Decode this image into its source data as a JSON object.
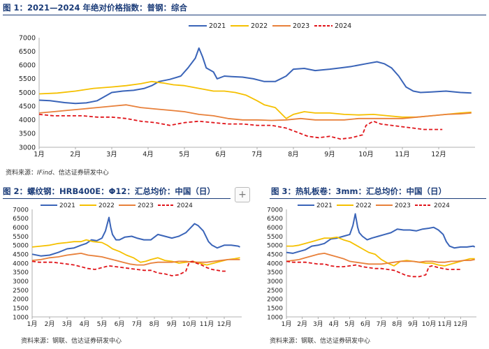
{
  "figures": [
    {
      "title": "图 1：2021—2024 年绝对价格指数：普钢：综合",
      "source": {
        "prefix": "资料来源：",
        "italic": "IFind",
        "suffix": "、信达证券研发中心"
      }
    },
    {
      "title": "图 2：螺纹钢：HRB400E：Φ12：汇总均价：中国（日）",
      "source": {
        "prefix": "资料来源：钢联、信达证券研发中心",
        "italic": "",
        "suffix": ""
      }
    },
    {
      "title": "图 3：热轧板卷：3mm：汇总均价：中国（日）",
      "source": {
        "prefix": "资料来源：钢联、信达证券研发中心",
        "italic": "",
        "suffix": ""
      }
    }
  ],
  "add_button_label": "+",
  "colors": {
    "2021": "#3a64b8",
    "2022": "#f5c000",
    "2023": "#e8803a",
    "2024": "#e0141a"
  },
  "chart_data": [
    {
      "type": "line",
      "title": "2021—2024 年绝对价格指数：普钢：综合",
      "categories": [
        "1月",
        "2月",
        "3月",
        "4月",
        "5月",
        "6月",
        "7月",
        "8月",
        "9月",
        "10月",
        "11月",
        "12月"
      ],
      "x_range": [
        1,
        13
      ],
      "ylim": [
        3000,
        7000
      ],
      "yticks": [
        3000,
        3500,
        4000,
        4500,
        5000,
        5500,
        6000,
        6500,
        7000
      ],
      "series": [
        {
          "name": "2021",
          "x": [
            1,
            1.3,
            1.7,
            2,
            2.3,
            2.6,
            3,
            3.3,
            3.6,
            3.9,
            4.1,
            4.3,
            4.6,
            4.9,
            5.1,
            5.3,
            5.4,
            5.5,
            5.6,
            5.8,
            5.9,
            6.1,
            6.3,
            6.6,
            6.9,
            7.2,
            7.5,
            7.8,
            8,
            8.3,
            8.6,
            9,
            9.3,
            9.6,
            10,
            10.3,
            10.5,
            10.7,
            10.9,
            11.1,
            11.3,
            11.5,
            11.8,
            12.2,
            12.6,
            12.9
          ],
          "values": [
            4720,
            4700,
            4630,
            4600,
            4620,
            4700,
            5000,
            5050,
            5080,
            5150,
            5250,
            5400,
            5480,
            5600,
            5900,
            6250,
            6620,
            6300,
            5900,
            5750,
            5500,
            5600,
            5580,
            5560,
            5500,
            5400,
            5400,
            5600,
            5850,
            5880,
            5800,
            5850,
            5900,
            5950,
            6050,
            6120,
            6050,
            5900,
            5600,
            5200,
            5050,
            5000,
            5020,
            5050,
            5000,
            4980
          ]
        },
        {
          "name": "2022",
          "x": [
            1,
            1.5,
            2,
            2.5,
            3,
            3.4,
            3.8,
            4.1,
            4.4,
            4.7,
            5,
            5.4,
            5.8,
            6.1,
            6.4,
            6.7,
            7,
            7.2,
            7.5,
            7.8,
            8,
            8.3,
            8.6,
            9,
            9.4,
            9.8,
            10.2,
            10.6,
            11,
            11.4,
            11.8,
            12.2,
            12.6,
            12.9
          ],
          "values": [
            4950,
            4980,
            5050,
            5150,
            5200,
            5250,
            5320,
            5400,
            5350,
            5280,
            5250,
            5150,
            5050,
            5050,
            5000,
            4900,
            4700,
            4550,
            4450,
            4050,
            4200,
            4300,
            4250,
            4250,
            4200,
            4180,
            4200,
            4150,
            4100,
            4100,
            4150,
            4200,
            4250,
            4280
          ]
        },
        {
          "name": "2023",
          "x": [
            1,
            1.4,
            1.8,
            2.2,
            2.6,
            3,
            3.4,
            3.8,
            4.2,
            4.6,
            5,
            5.4,
            5.8,
            6.2,
            6.6,
            7,
            7.4,
            7.8,
            8.2,
            8.6,
            9,
            9.4,
            9.8,
            10.2,
            10.6,
            11,
            11.4,
            11.8,
            12.2,
            12.6,
            12.9
          ],
          "values": [
            4250,
            4300,
            4350,
            4400,
            4450,
            4500,
            4550,
            4450,
            4400,
            4350,
            4300,
            4200,
            4150,
            4050,
            4000,
            4000,
            3980,
            4000,
            4050,
            4000,
            4000,
            4000,
            4050,
            4050,
            4050,
            4050,
            4100,
            4150,
            4200,
            4220,
            4250
          ]
        },
        {
          "name": "2024",
          "x": [
            1,
            1.4,
            1.8,
            2.2,
            2.6,
            3,
            3.4,
            3.8,
            4.2,
            4.6,
            5,
            5.4,
            5.8,
            6.2,
            6.6,
            7,
            7.4,
            7.8,
            8.1,
            8.4,
            8.7,
            9,
            9.3,
            9.6,
            9.9,
            10,
            10.2,
            10.4,
            10.7,
            11,
            11.3,
            11.6,
            11.9,
            12.1
          ],
          "values": [
            4200,
            4150,
            4150,
            4150,
            4100,
            4100,
            4050,
            3950,
            3900,
            3800,
            3900,
            3950,
            3900,
            3850,
            3850,
            3800,
            3800,
            3700,
            3550,
            3400,
            3350,
            3400,
            3300,
            3350,
            3450,
            3800,
            3950,
            3850,
            3800,
            3750,
            3700,
            3650,
            3650,
            3650
          ]
        }
      ]
    },
    {
      "type": "line",
      "title": "螺纹钢：HRB400E：Φ12：汇总均价：中国（日）",
      "categories": [
        "1月",
        "2月",
        "3月",
        "4月",
        "5月",
        "6月",
        "7月",
        "8月",
        "9月",
        "10月",
        "11月",
        "12月"
      ],
      "x_range": [
        1,
        13
      ],
      "ylim": [
        1000,
        7000
      ],
      "yticks": [
        1000,
        1500,
        2000,
        2500,
        3000,
        3500,
        4000,
        4500,
        5000,
        5500,
        6000,
        6500,
        7000
      ],
      "series": [
        {
          "name": "2021",
          "x": [
            1,
            1.5,
            2,
            2.5,
            3,
            3.4,
            3.8,
            4.1,
            4.4,
            4.7,
            5,
            5.2,
            5.4,
            5.5,
            5.6,
            5.8,
            6,
            6.3,
            6.7,
            7,
            7.4,
            7.8,
            8.2,
            8.6,
            9,
            9.4,
            9.8,
            10.1,
            10.3,
            10.5,
            10.8,
            11.1,
            11.3,
            11.6,
            12,
            12.4,
            12.8,
            12.9
          ],
          "values": [
            4500,
            4400,
            4450,
            4600,
            4800,
            4850,
            5000,
            5100,
            5300,
            5250,
            5400,
            5800,
            6550,
            6000,
            5600,
            5300,
            5300,
            5450,
            5500,
            5400,
            5300,
            5300,
            5600,
            5500,
            5400,
            5500,
            5700,
            6000,
            6200,
            6100,
            5800,
            5200,
            5000,
            4850,
            5000,
            5000,
            4950,
            4900
          ]
        },
        {
          "name": "2022",
          "x": [
            1,
            1.5,
            2,
            2.5,
            3,
            3.4,
            3.8,
            4.1,
            4.5,
            5,
            5.3,
            5.6,
            6,
            6.4,
            6.8,
            7.2,
            7.5,
            7.8,
            8.2,
            8.6,
            9,
            9.4,
            9.8,
            10.2,
            10.6,
            11,
            11.4,
            11.8,
            12.2,
            12.6,
            12.9
          ],
          "values": [
            4900,
            4950,
            5000,
            5100,
            5150,
            5200,
            5200,
            5300,
            5200,
            5150,
            5000,
            4800,
            4650,
            4450,
            4300,
            4050,
            4100,
            4200,
            4300,
            4150,
            4100,
            4000,
            4050,
            4100,
            4000,
            3900,
            4000,
            4100,
            4200,
            4250,
            4300
          ]
        },
        {
          "name": "2023",
          "x": [
            1,
            1.5,
            2,
            2.5,
            3,
            3.4,
            3.8,
            4.2,
            4.6,
            5,
            5.4,
            5.8,
            6.2,
            6.6,
            7,
            7.4,
            7.8,
            8.2,
            8.6,
            9,
            9.4,
            9.8,
            10.2,
            10.6,
            11,
            11.4,
            11.8,
            12.2,
            12.6,
            12.9
          ],
          "values": [
            4150,
            4200,
            4300,
            4350,
            4450,
            4500,
            4550,
            4450,
            4400,
            4350,
            4250,
            4150,
            4050,
            3950,
            3900,
            3900,
            4000,
            4050,
            4050,
            4050,
            4100,
            4100,
            4050,
            4050,
            4050,
            4100,
            4150,
            4200,
            4200,
            4200
          ]
        },
        {
          "name": "2024",
          "x": [
            1,
            1.4,
            1.8,
            2.2,
            2.6,
            3,
            3.4,
            3.8,
            4.2,
            4.6,
            5,
            5.4,
            5.8,
            6.2,
            6.6,
            7,
            7.4,
            7.8,
            8.2,
            8.6,
            9,
            9.4,
            9.8,
            10,
            10.2,
            10.4,
            10.7,
            11,
            11.3,
            11.6,
            11.9,
            12.1
          ],
          "values": [
            4100,
            4050,
            4050,
            4050,
            4000,
            3950,
            3900,
            3800,
            3700,
            3650,
            3750,
            3850,
            3800,
            3750,
            3700,
            3650,
            3600,
            3600,
            3450,
            3400,
            3300,
            3350,
            3550,
            4050,
            4100,
            4000,
            3900,
            3750,
            3650,
            3600,
            3550,
            3550
          ]
        }
      ]
    },
    {
      "type": "line",
      "title": "热轧板卷：3mm：汇总均价：中国（日）",
      "categories": [
        "1月",
        "2月",
        "3月",
        "4月",
        "5月",
        "6月",
        "7月",
        "8月",
        "9月",
        "10月",
        "11月",
        "12月"
      ],
      "x_range": [
        1,
        13
      ],
      "ylim": [
        1000,
        7000
      ],
      "yticks": [
        1000,
        1500,
        2000,
        2500,
        3000,
        3500,
        4000,
        4500,
        5000,
        5500,
        6000,
        6500,
        7000
      ],
      "series": [
        {
          "name": "2021",
          "x": [
            1,
            1.4,
            1.8,
            2.2,
            2.6,
            3,
            3.4,
            3.8,
            4.2,
            4.6,
            5,
            5.2,
            5.35,
            5.5,
            5.6,
            5.8,
            6.1,
            6.4,
            6.8,
            7.2,
            7.6,
            8,
            8.4,
            8.8,
            9.2,
            9.6,
            10,
            10.3,
            10.6,
            10.9,
            11.1,
            11.3,
            11.6,
            12,
            12.4,
            12.8,
            12.9
          ],
          "values": [
            4600,
            4550,
            4650,
            4750,
            4950,
            5000,
            5100,
            5350,
            5400,
            5500,
            5600,
            6100,
            6750,
            6000,
            5700,
            5500,
            5300,
            5400,
            5500,
            5600,
            5700,
            5900,
            5850,
            5850,
            5800,
            5900,
            5950,
            6000,
            5850,
            5600,
            5200,
            4950,
            4850,
            4900,
            4900,
            4950,
            4900
          ]
        },
        {
          "name": "2022",
          "x": [
            1,
            1.4,
            1.8,
            2.2,
            2.6,
            3,
            3.4,
            3.8,
            4.2,
            4.6,
            5,
            5.4,
            5.8,
            6.2,
            6.6,
            7,
            7.4,
            7.8,
            8.2,
            8.6,
            9,
            9.4,
            9.8,
            10.2,
            10.6,
            11,
            11.4,
            11.8,
            12.2,
            12.6,
            12.9
          ],
          "values": [
            4950,
            4950,
            5000,
            5100,
            5200,
            5300,
            5400,
            5400,
            5450,
            5300,
            5200,
            5000,
            4800,
            4600,
            4500,
            4200,
            4000,
            3850,
            4100,
            4150,
            4100,
            4050,
            4000,
            4000,
            3900,
            3850,
            3950,
            4050,
            4150,
            4250,
            4250
          ]
        },
        {
          "name": "2023",
          "x": [
            1,
            1.4,
            1.8,
            2.2,
            2.6,
            3,
            3.4,
            3.8,
            4.2,
            4.6,
            5,
            5.4,
            5.8,
            6.2,
            6.6,
            7,
            7.4,
            7.8,
            8.2,
            8.6,
            9,
            9.4,
            9.8,
            10.2,
            10.6,
            11,
            11.4,
            11.8,
            12.2,
            12.6,
            12.9
          ],
          "values": [
            4100,
            4150,
            4200,
            4300,
            4400,
            4500,
            4550,
            4450,
            4350,
            4250,
            4100,
            4050,
            4000,
            3950,
            3950,
            3950,
            4000,
            4050,
            4100,
            4100,
            4100,
            4050,
            4100,
            4100,
            4050,
            4050,
            4100,
            4100,
            4150,
            4150,
            4200
          ]
        },
        {
          "name": "2024",
          "x": [
            1,
            1.4,
            1.8,
            2.2,
            2.6,
            3,
            3.4,
            3.8,
            4.2,
            4.6,
            5,
            5.4,
            5.8,
            6.2,
            6.6,
            7,
            7.4,
            7.8,
            8.2,
            8.6,
            9,
            9.4,
            9.8,
            10,
            10.2,
            10.4,
            10.6,
            10.9,
            11.2,
            11.5,
            11.8,
            12.1
          ],
          "values": [
            4100,
            4050,
            4050,
            4050,
            4000,
            3950,
            3950,
            3850,
            3800,
            3800,
            3850,
            3900,
            3800,
            3750,
            3700,
            3700,
            3650,
            3600,
            3450,
            3300,
            3250,
            3250,
            3350,
            3800,
            3850,
            3800,
            3750,
            3700,
            3650,
            3650,
            3650,
            3650
          ]
        }
      ]
    }
  ]
}
